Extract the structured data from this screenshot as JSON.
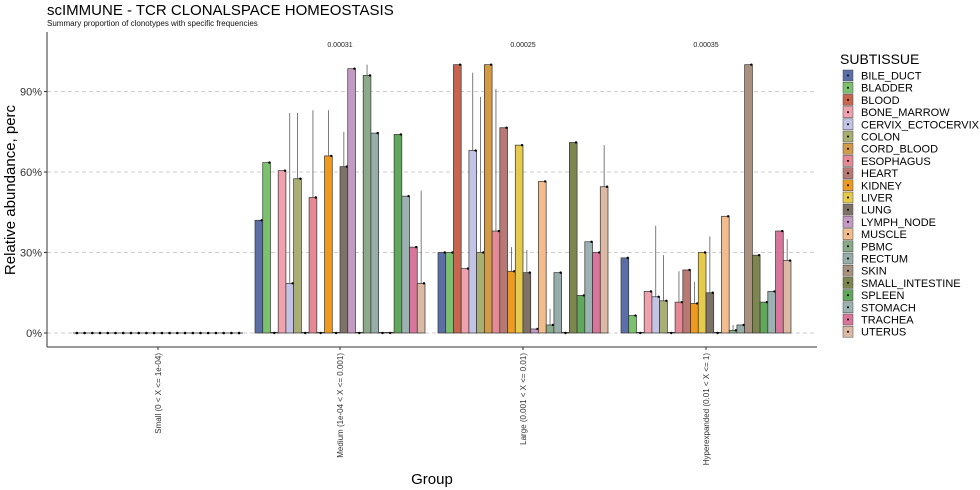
{
  "chart_data": {
    "type": "bar",
    "title": "scIMMUNE - TCR CLONALSPACE HOMEOSTASIS",
    "subtitle": "Summary proportion of clonotypes with specific frequencies",
    "xlabel": "Group",
    "ylabel": "Relative abundance, perc",
    "ylim": [
      0,
      100
    ],
    "yticks": [
      0,
      30,
      60,
      90
    ],
    "ytick_labels": [
      "0%",
      "30%",
      "60%",
      "90%"
    ],
    "grid": "horizontal-dashed",
    "legend_position": "right",
    "legend_title": "SUBTISSUE",
    "categories": [
      "Small (0 < X <= 1e-04)",
      "Medium (1e-04 < X <= 0.001)",
      "Large (0.001 < X <= 0.01)",
      "Hyperexpanded (0.01 < X <= 1)"
    ],
    "annotations": [
      "",
      "0.00031",
      "0.00025",
      "0.00035"
    ],
    "series": [
      {
        "name": "BILE_DUCT",
        "color": "#5B6FA6",
        "values": [
          0,
          42,
          30,
          28
        ],
        "err_hi": [
          0,
          0,
          0,
          0
        ]
      },
      {
        "name": "BLADDER",
        "color": "#7CC26E",
        "values": [
          0,
          63.5,
          30,
          6.5
        ],
        "err_hi": [
          0,
          0,
          0,
          0
        ]
      },
      {
        "name": "BLOOD",
        "color": "#C9644F",
        "values": [
          0,
          0,
          100,
          0
        ],
        "err_hi": [
          0,
          0,
          0,
          0
        ]
      },
      {
        "name": "BONE_MARROW",
        "color": "#EFA2AE",
        "values": [
          0,
          60.5,
          24,
          15.5
        ],
        "err_hi": [
          0,
          0,
          0,
          0
        ]
      },
      {
        "name": "CERVIX_ECTOCERVIX",
        "color": "#C3C3E6",
        "values": [
          0,
          18.5,
          68,
          13.5
        ],
        "err_hi": [
          0,
          82,
          97,
          40
        ]
      },
      {
        "name": "COLON",
        "color": "#A9AE72",
        "values": [
          0,
          57.5,
          30,
          12
        ],
        "err_hi": [
          0,
          82,
          88,
          29
        ]
      },
      {
        "name": "CORD_BLOOD",
        "color": "#D39B48",
        "values": [
          0,
          0,
          100,
          0
        ],
        "err_hi": [
          0,
          0,
          0,
          0
        ]
      },
      {
        "name": "ESOPHAGUS",
        "color": "#E58A95",
        "values": [
          0,
          50.5,
          38,
          11.5
        ],
        "err_hi": [
          0,
          83,
          91,
          23
        ]
      },
      {
        "name": "HEART",
        "color": "#B87873",
        "values": [
          0,
          0,
          76.5,
          23.5
        ],
        "err_hi": [
          0,
          0,
          0,
          0
        ]
      },
      {
        "name": "KIDNEY",
        "color": "#EE9A21",
        "values": [
          0,
          66,
          23,
          11
        ],
        "err_hi": [
          0,
          83,
          32,
          19
        ]
      },
      {
        "name": "LIVER",
        "color": "#E5CA4C",
        "values": [
          0,
          0,
          70,
          30
        ],
        "err_hi": [
          0,
          0,
          0,
          0
        ]
      },
      {
        "name": "LUNG",
        "color": "#7E7268",
        "values": [
          0,
          62,
          22.5,
          15
        ],
        "err_hi": [
          0,
          75,
          31,
          36
        ]
      },
      {
        "name": "LYMPH_NODE",
        "color": "#C49AC4",
        "values": [
          0,
          98.5,
          1.5,
          0
        ],
        "err_hi": [
          0,
          0,
          0,
          0
        ]
      },
      {
        "name": "MUSCLE",
        "color": "#F3BC8C",
        "values": [
          0,
          0,
          56.5,
          43.5
        ],
        "err_hi": [
          0,
          0,
          0,
          0
        ]
      },
      {
        "name": "PBMC",
        "color": "#8AAA8A",
        "values": [
          0,
          96,
          3,
          1
        ],
        "err_hi": [
          0,
          100,
          9,
          3
        ]
      },
      {
        "name": "RECTUM",
        "color": "#96ADA9",
        "values": [
          0,
          74.5,
          22.5,
          3
        ],
        "err_hi": [
          0,
          0,
          0,
          0
        ]
      },
      {
        "name": "SKIN",
        "color": "#A8927F",
        "values": [
          0,
          0,
          0,
          100
        ],
        "err_hi": [
          0,
          0,
          0,
          0
        ]
      },
      {
        "name": "SMALL_INTESTINE",
        "color": "#7E8650",
        "values": [
          0,
          0,
          71,
          29
        ],
        "err_hi": [
          0,
          0,
          0,
          0
        ]
      },
      {
        "name": "SPLEEN",
        "color": "#62A85C",
        "values": [
          0,
          74,
          14,
          11.5
        ],
        "err_hi": [
          0,
          0,
          0,
          0
        ]
      },
      {
        "name": "STOMACH",
        "color": "#9CB2B2",
        "values": [
          0,
          51,
          34,
          15.5
        ],
        "err_hi": [
          0,
          0,
          0,
          0
        ]
      },
      {
        "name": "TRACHEA",
        "color": "#D9749A",
        "values": [
          0,
          32,
          30,
          38
        ],
        "err_hi": [
          0,
          0,
          0,
          0
        ]
      },
      {
        "name": "UTERUS",
        "color": "#DCB9A4",
        "values": [
          0,
          18.5,
          54.5,
          27
        ],
        "err_hi": [
          0,
          53,
          70,
          35
        ]
      }
    ]
  }
}
